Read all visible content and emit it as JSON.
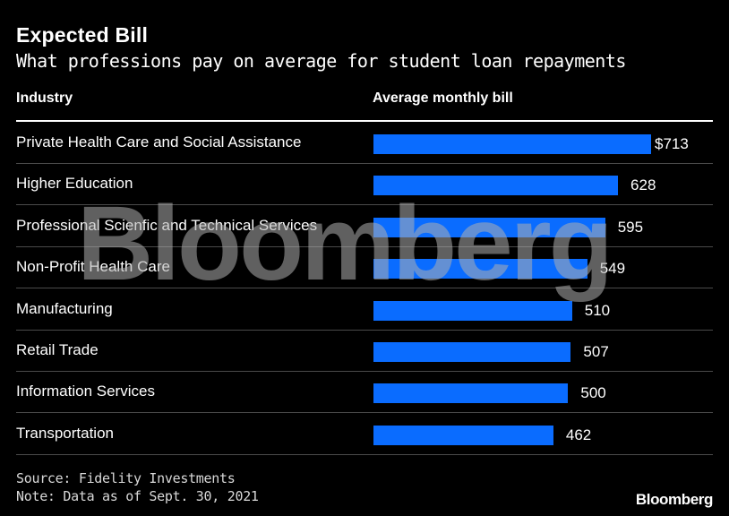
{
  "title": "Expected Bill",
  "subtitle": "What professions pay on average for student loan repayments",
  "columns": {
    "industry": "Industry",
    "bill": "Average monthly bill"
  },
  "watermark": "Bloomberg",
  "source": "Source: Fidelity Investments",
  "note": "Note: Data as of Sept. 30, 2021",
  "logo": "Bloomberg",
  "colors": {
    "background": "#000000",
    "bar": "#0a6cff",
    "text": "#ffffff"
  },
  "chart_data": {
    "type": "bar",
    "orientation": "horizontal",
    "title": "Expected Bill",
    "subtitle": "What professions pay on average for student loan repayments",
    "categories": [
      "Private Health Care and Social Assistance",
      "Higher Education",
      "Professional Scienfic and Technical Services",
      "Non-Profit Health Care",
      "Manufacturing",
      "Retail Trade",
      "Information Services",
      "Transportation"
    ],
    "values": [
      713,
      628,
      595,
      549,
      510,
      507,
      500,
      462
    ],
    "value_labels": [
      "$713",
      "628",
      "595",
      "549",
      "510",
      "507",
      "500",
      "462"
    ],
    "xlim": [
      0,
      713
    ],
    "grid": false,
    "legend": "none"
  }
}
